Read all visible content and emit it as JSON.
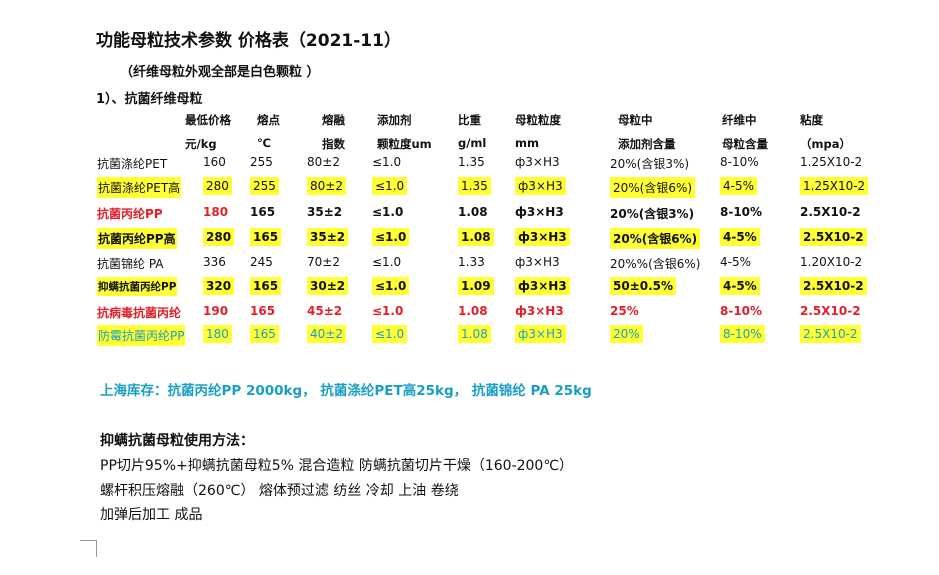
{
  "doc": {
    "title": "功能母粒技术参数  价格表（2021-11）",
    "subtitle": "（纤维母粒外观全部是白色颗粒  ）",
    "section": "1）、抗菌纤维母粒"
  },
  "table": {
    "header_row1": [
      "最低价格",
      "熔点",
      "熔融",
      "添加剂",
      "比重",
      "母粒粒度",
      "母粒中",
      "纤维中",
      "粘度"
    ],
    "header_row2": [
      "元/kg",
      "℃",
      "指数",
      "颗粒度um",
      "g/ml",
      "mm",
      "添加剂含量",
      "母粒含量",
      "（mpa）"
    ],
    "rows": [
      {
        "name": "抗菌涤纶PET",
        "cells": [
          "160",
          "255",
          "80±2",
          "≤1.0",
          "1.35",
          "ф3×H3",
          "20%(含银3%)",
          "8-10%",
          "1.25X10-2"
        ]
      },
      {
        "name": "抗菌涤纶PET高",
        "cells": [
          "280",
          "255",
          "80±2",
          "≤1.0",
          "1.35",
          "ф3×H3",
          "20%(含银6%)",
          "4-5%",
          "1.25X10-2"
        ]
      },
      {
        "name": "抗菌丙纶PP",
        "cells": [
          "180",
          "165",
          "35±2",
          "≤1.0",
          "1.08",
          "ф3×H3",
          "20%(含银3%)",
          "8-10%",
          "2.5X10-2"
        ]
      },
      {
        "name": "抗菌丙纶PP高",
        "cells": [
          "280",
          "165",
          "35±2",
          "≤1.0",
          "1.08",
          "ф3×H3",
          "20%(含银6%)",
          "4-5%",
          "2.5X10-2"
        ]
      },
      {
        "name": "抗菌锦纶  PA",
        "cells": [
          "336",
          "245",
          "70±2",
          "≤1.0",
          "1.33",
          "ф3×H3",
          "20%%(含银6%)",
          "4-5%",
          "1.20X10-2"
        ]
      },
      {
        "name": "抑螨抗菌丙纶PP",
        "cells": [
          "320",
          "165",
          "30±2",
          "≤1.0",
          "1.09",
          "ф3×H3",
          "50±0.5%",
          "4-5%",
          "2.5X10-2"
        ]
      },
      {
        "name": "抗病毒抗菌丙纶",
        "cells": [
          "190",
          "165",
          "45±2",
          "≤1.0",
          "1.08",
          "ф3×H3",
          "25%",
          "8-10%",
          "2.5X10-2"
        ]
      },
      {
        "name": "防霉抗菌丙纶PP",
        "cells": [
          "180",
          "165",
          "40±2",
          "≤1.0",
          "1.08",
          "ф3×H3",
          "20%",
          "8-10%",
          "2.5X10-2"
        ]
      }
    ]
  },
  "stock": "上海库存：抗菌丙纶PP  2000kg，  抗菌涤纶PET高25kg，  抗菌锦纶  PA  25kg",
  "usage": {
    "title": "抑螨抗菌母粒使用方法：",
    "lines": [
      "PP切片95%+抑螨抗菌母粒5%  混合造粒  防螨抗菌切片干燥（160-200℃）",
      "螺杆积压熔融（260℃）  熔体预过滤  纺丝  冷却  上油  卷绕",
      "加弹后加工  成品"
    ]
  },
  "colors": {
    "highlight": "#ffff33",
    "red_text": "#e0202a",
    "teal_text": "#1a9fc4"
  }
}
